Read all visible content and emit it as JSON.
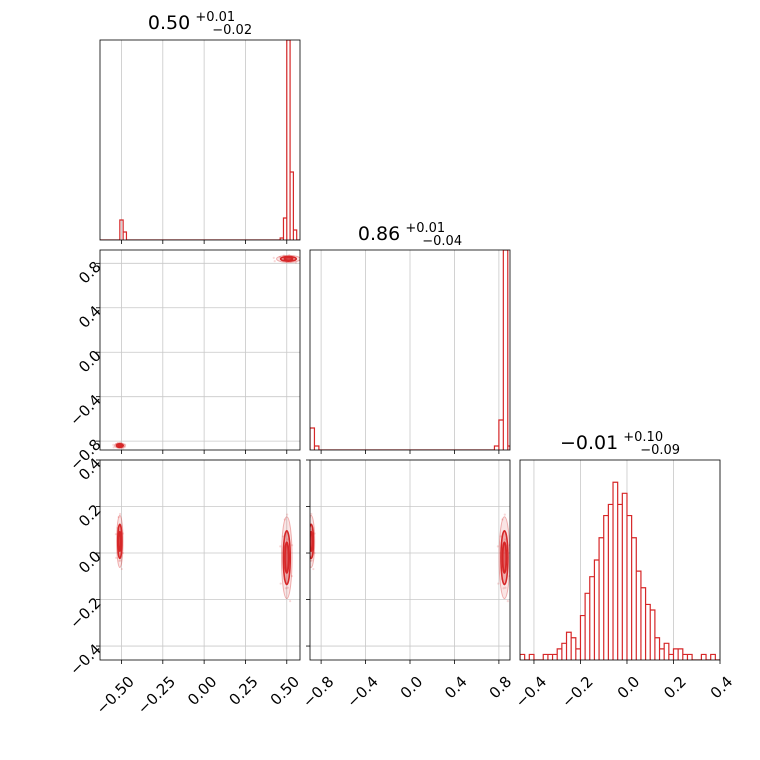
{
  "chart_data": {
    "type": "corner",
    "color": "#d62728",
    "panels": [
      {
        "id": "hist-1",
        "type": "histogram",
        "title": {
          "median": "0.50",
          "plus": "+0.01",
          "minus": "−0.02"
        },
        "xlim": [
          -0.63,
          0.58
        ],
        "xticks": [
          -0.5,
          -0.25,
          0.0,
          0.25,
          0.5
        ],
        "xtick_labels": [],
        "ylim": [
          0,
          100
        ],
        "bins": [
          {
            "x0": -0.51,
            "x1": -0.49,
            "h": 10
          },
          {
            "x0": -0.49,
            "x1": -0.47,
            "h": 4
          },
          {
            "x0": 0.46,
            "x1": 0.48,
            "h": 1
          },
          {
            "x0": 0.48,
            "x1": 0.5,
            "h": 11
          },
          {
            "x0": 0.5,
            "x1": 0.52,
            "h": 100
          },
          {
            "x0": 0.52,
            "x1": 0.54,
            "h": 34
          },
          {
            "x0": 0.54,
            "x1": 0.56,
            "h": 5
          }
        ]
      },
      {
        "id": "scatter-2-1",
        "type": "contour",
        "xlim": [
          -0.63,
          0.58
        ],
        "ylim": [
          -0.88,
          0.92
        ],
        "xticks": [
          -0.5,
          -0.25,
          0.0,
          0.25,
          0.5
        ],
        "xtick_labels": [],
        "yticks": [
          -0.8,
          -0.4,
          0.0,
          0.4,
          0.8
        ],
        "ytick_labels": [
          "−0.8",
          "−0.4",
          "0.0",
          "0.4",
          "0.8"
        ],
        "clusters": [
          {
            "x": 0.51,
            "y": 0.84,
            "sx": 0.045,
            "sy": 0.02
          },
          {
            "x": -0.51,
            "y": -0.84,
            "sx": 0.02,
            "sy": 0.015
          }
        ]
      },
      {
        "id": "hist-2",
        "type": "histogram",
        "title": {
          "median": "0.86",
          "plus": "+0.01",
          "minus": "−0.04"
        },
        "xlim": [
          -0.9,
          0.9
        ],
        "xticks": [
          -0.8,
          -0.4,
          0.0,
          0.4,
          0.8
        ],
        "xtick_labels": [],
        "ylim": [
          0,
          100
        ],
        "bins": [
          {
            "x0": -0.9,
            "x1": -0.86,
            "h": 11
          },
          {
            "x0": -0.86,
            "x1": -0.82,
            "h": 2
          },
          {
            "x0": 0.76,
            "x1": 0.8,
            "h": 2
          },
          {
            "x0": 0.8,
            "x1": 0.84,
            "h": 15
          },
          {
            "x0": 0.84,
            "x1": 0.88,
            "h": 100
          },
          {
            "x0": 0.88,
            "x1": 0.9,
            "h": 2
          }
        ]
      },
      {
        "id": "scatter-3-1",
        "type": "contour",
        "xlim": [
          -0.63,
          0.58
        ],
        "ylim": [
          -0.46,
          0.4
        ],
        "xticks": [
          -0.5,
          -0.25,
          0.0,
          0.25,
          0.5
        ],
        "xtick_labels": [
          "−0.50",
          "−0.25",
          "0.00",
          "0.25",
          "0.50"
        ],
        "yticks": [
          -0.4,
          -0.2,
          0.0,
          0.2,
          0.4
        ],
        "ytick_labels": [
          "−0.4",
          "−0.2",
          "0.0",
          "0.2",
          "0.4"
        ],
        "clusters": [
          {
            "x": 0.5,
            "y": -0.02,
            "sx": 0.02,
            "sy": 0.11
          },
          {
            "x": -0.51,
            "y": 0.05,
            "sx": 0.012,
            "sy": 0.07
          }
        ]
      },
      {
        "id": "scatter-3-2",
        "type": "contour",
        "xlim": [
          -0.9,
          0.9
        ],
        "ylim": [
          -0.46,
          0.4
        ],
        "xticks": [
          -0.8,
          -0.4,
          0.0,
          0.4,
          0.8
        ],
        "xtick_labels": [
          "−0.8",
          "−0.4",
          "0.0",
          "0.4",
          "0.8"
        ],
        "yticks": [
          -0.4,
          -0.2,
          0.0,
          0.2,
          0.4
        ],
        "ytick_labels": [],
        "clusters": [
          {
            "x": 0.85,
            "y": -0.02,
            "sx": 0.03,
            "sy": 0.11
          },
          {
            "x": -0.89,
            "y": 0.05,
            "sx": 0.02,
            "sy": 0.07
          }
        ]
      },
      {
        "id": "hist-3",
        "type": "histogram",
        "title": {
          "median": "−0.01",
          "plus": "+0.10",
          "minus": "−0.09"
        },
        "xlim": [
          -0.46,
          0.4
        ],
        "xticks": [
          -0.4,
          -0.2,
          0.0,
          0.2,
          0.4
        ],
        "xtick_labels": [
          "−0.4",
          "−0.2",
          "0.0",
          "0.2",
          "0.4"
        ],
        "ylim": [
          0,
          36
        ],
        "bins": [
          {
            "x0": -0.46,
            "x1": -0.44,
            "h": 1
          },
          {
            "x0": -0.44,
            "x1": -0.42,
            "h": 0
          },
          {
            "x0": -0.42,
            "x1": -0.4,
            "h": 1
          },
          {
            "x0": -0.4,
            "x1": -0.38,
            "h": 0
          },
          {
            "x0": -0.38,
            "x1": -0.36,
            "h": 0
          },
          {
            "x0": -0.36,
            "x1": -0.34,
            "h": 1
          },
          {
            "x0": -0.34,
            "x1": -0.32,
            "h": 1
          },
          {
            "x0": -0.32,
            "x1": -0.3,
            "h": 1
          },
          {
            "x0": -0.3,
            "x1": -0.28,
            "h": 2
          },
          {
            "x0": -0.28,
            "x1": -0.26,
            "h": 3
          },
          {
            "x0": -0.26,
            "x1": -0.24,
            "h": 5
          },
          {
            "x0": -0.24,
            "x1": -0.22,
            "h": 4
          },
          {
            "x0": -0.22,
            "x1": -0.2,
            "h": 2
          },
          {
            "x0": -0.2,
            "x1": -0.18,
            "h": 8
          },
          {
            "x0": -0.18,
            "x1": -0.16,
            "h": 12
          },
          {
            "x0": -0.16,
            "x1": -0.14,
            "h": 15
          },
          {
            "x0": -0.14,
            "x1": -0.12,
            "h": 18
          },
          {
            "x0": -0.12,
            "x1": -0.1,
            "h": 22
          },
          {
            "x0": -0.1,
            "x1": -0.08,
            "h": 26
          },
          {
            "x0": -0.08,
            "x1": -0.06,
            "h": 28
          },
          {
            "x0": -0.06,
            "x1": -0.04,
            "h": 32
          },
          {
            "x0": -0.04,
            "x1": -0.02,
            "h": 28
          },
          {
            "x0": -0.02,
            "x1": 0.0,
            "h": 30
          },
          {
            "x0": 0.0,
            "x1": 0.02,
            "h": 26
          },
          {
            "x0": 0.02,
            "x1": 0.04,
            "h": 22
          },
          {
            "x0": 0.04,
            "x1": 0.06,
            "h": 16
          },
          {
            "x0": 0.06,
            "x1": 0.08,
            "h": 13
          },
          {
            "x0": 0.08,
            "x1": 0.1,
            "h": 10
          },
          {
            "x0": 0.1,
            "x1": 0.12,
            "h": 9
          },
          {
            "x0": 0.12,
            "x1": 0.14,
            "h": 4
          },
          {
            "x0": 0.14,
            "x1": 0.16,
            "h": 2
          },
          {
            "x0": 0.16,
            "x1": 0.18,
            "h": 3
          },
          {
            "x0": 0.18,
            "x1": 0.2,
            "h": 1
          },
          {
            "x0": 0.2,
            "x1": 0.22,
            "h": 2
          },
          {
            "x0": 0.22,
            "x1": 0.24,
            "h": 2
          },
          {
            "x0": 0.24,
            "x1": 0.26,
            "h": 1
          },
          {
            "x0": 0.26,
            "x1": 0.28,
            "h": 1
          },
          {
            "x0": 0.28,
            "x1": 0.3,
            "h": 0
          },
          {
            "x0": 0.3,
            "x1": 0.32,
            "h": 0
          },
          {
            "x0": 0.32,
            "x1": 0.34,
            "h": 1
          },
          {
            "x0": 0.34,
            "x1": 0.36,
            "h": 0
          },
          {
            "x0": 0.36,
            "x1": 0.38,
            "h": 1
          },
          {
            "x0": 0.38,
            "x1": 0.4,
            "h": 0
          }
        ]
      }
    ]
  }
}
